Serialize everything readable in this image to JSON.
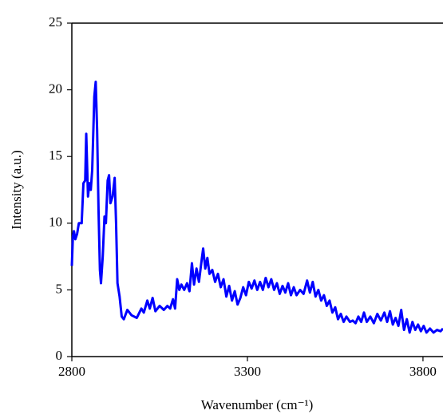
{
  "chart_data": {
    "type": "line",
    "x_label": "Wavenumber (cm⁻¹)",
    "y_label": "Intensity (a.u.)",
    "xlim": [
      2800,
      3857
    ],
    "xticks": [
      2800,
      3300,
      3800
    ],
    "ylim": [
      0,
      25
    ],
    "yticks": [
      0,
      5,
      10,
      15,
      20,
      25
    ],
    "series": [
      {
        "color": "#0000ff",
        "x": [
          2800,
          2803,
          2806,
          2810,
          2815,
          2820,
          2828,
          2833,
          2838,
          2841,
          2846,
          2850,
          2854,
          2858,
          2864,
          2868,
          2872,
          2876,
          2880,
          2883,
          2888,
          2893,
          2897,
          2902,
          2906,
          2910,
          2916,
          2922,
          2926,
          2930,
          2936,
          2942,
          2948,
          2958,
          2970,
          2985,
          2998,
          3005,
          3015,
          3022,
          3030,
          3038,
          3050,
          3062,
          3072,
          3080,
          3088,
          3094,
          3100,
          3106,
          3112,
          3120,
          3128,
          3135,
          3142,
          3148,
          3155,
          3162,
          3170,
          3174,
          3180,
          3186,
          3192,
          3200,
          3208,
          3216,
          3224,
          3232,
          3240,
          3248,
          3256,
          3264,
          3272,
          3280,
          3288,
          3296,
          3304,
          3312,
          3320,
          3328,
          3336,
          3344,
          3352,
          3360,
          3368,
          3376,
          3384,
          3392,
          3400,
          3408,
          3416,
          3424,
          3432,
          3440,
          3450,
          3460,
          3470,
          3478,
          3486,
          3494,
          3502,
          3510,
          3518,
          3526,
          3534,
          3542,
          3550,
          3558,
          3566,
          3574,
          3582,
          3592,
          3600,
          3608,
          3616,
          3624,
          3632,
          3640,
          3650,
          3660,
          3670,
          3680,
          3690,
          3698,
          3706,
          3714,
          3722,
          3730,
          3738,
          3746,
          3754,
          3762,
          3770,
          3778,
          3786,
          3794,
          3802,
          3810,
          3820,
          3830,
          3840,
          3850,
          3857
        ],
        "values": [
          6.8,
          9.0,
          9.4,
          8.8,
          9.2,
          10.0,
          10.0,
          13.0,
          13.2,
          16.7,
          12.0,
          13.0,
          12.5,
          14.0,
          19.5,
          20.6,
          17.0,
          11.0,
          6.5,
          5.5,
          7.5,
          10.5,
          10.0,
          13.2,
          13.6,
          11.5,
          12.0,
          13.4,
          10.0,
          5.5,
          4.5,
          3.0,
          2.8,
          3.5,
          3.1,
          2.9,
          3.6,
          3.3,
          4.2,
          3.6,
          4.4,
          3.4,
          3.8,
          3.5,
          3.8,
          3.6,
          4.3,
          3.6,
          5.8,
          5.0,
          5.4,
          5.0,
          5.5,
          4.9,
          7.0,
          5.4,
          6.6,
          5.6,
          7.3,
          8.1,
          6.6,
          7.4,
          6.2,
          6.5,
          5.6,
          6.2,
          5.2,
          5.8,
          4.5,
          5.3,
          4.2,
          4.9,
          3.9,
          4.4,
          5.2,
          4.6,
          5.6,
          5.1,
          5.7,
          5.0,
          5.6,
          5.0,
          5.9,
          5.2,
          5.8,
          5.0,
          5.5,
          4.7,
          5.3,
          4.8,
          5.5,
          4.6,
          5.2,
          4.6,
          5.0,
          4.7,
          5.7,
          4.8,
          5.6,
          4.5,
          5.0,
          4.2,
          4.6,
          3.8,
          4.2,
          3.3,
          3.7,
          2.8,
          3.2,
          2.6,
          3.0,
          2.6,
          2.7,
          2.5,
          3.0,
          2.6,
          3.3,
          2.6,
          3.0,
          2.5,
          3.2,
          2.7,
          3.3,
          2.6,
          3.4,
          2.4,
          2.9,
          2.3,
          3.5,
          2.0,
          2.8,
          1.8,
          2.6,
          2.0,
          2.4,
          1.9,
          2.3,
          1.8,
          2.1,
          1.8,
          2.0,
          1.9,
          2.1
        ]
      }
    ]
  }
}
